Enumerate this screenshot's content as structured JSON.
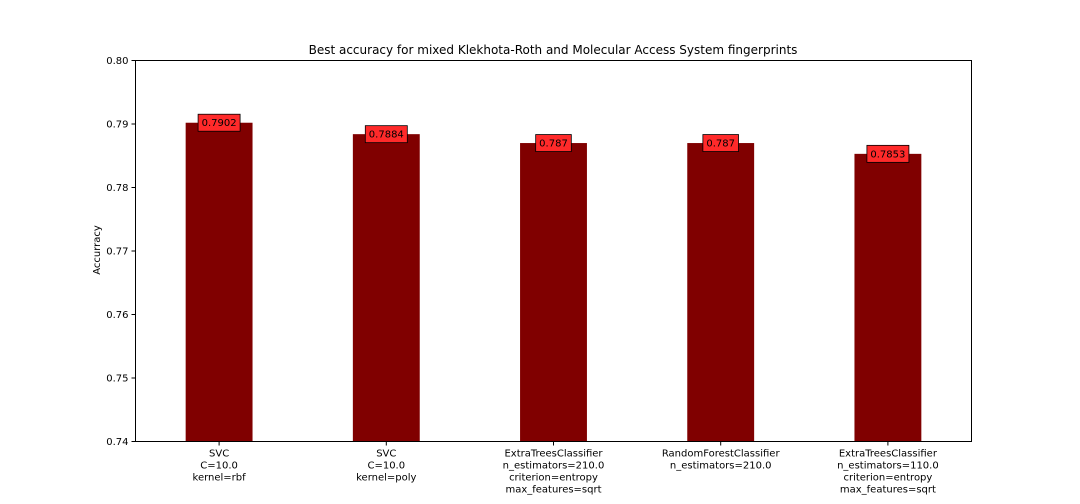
{
  "chart_data": {
    "type": "bar",
    "title": "Best accuracy for mixed Klekhota-Roth and Molecular Access System fingerprints",
    "xlabel": "",
    "ylabel": "Accurracy",
    "ylim": [
      0.74,
      0.8
    ],
    "yticks": [
      "0.74",
      "0.75",
      "0.76",
      "0.77",
      "0.78",
      "0.79",
      "0.80"
    ],
    "grid": false,
    "bar_color": "#800000",
    "label_box_color": "#ff2a2a",
    "categories": [
      [
        "SVC",
        "C=10.0",
        "kernel=rbf"
      ],
      [
        "SVC",
        "C=10.0",
        "kernel=poly"
      ],
      [
        "ExtraTreesClassifier",
        "n_estimators=210.0",
        "criterion=entropy",
        "max_features=sqrt"
      ],
      [
        "RandomForestClassifier",
        "n_estimators=210.0"
      ],
      [
        "ExtraTreesClassifier",
        "n_estimators=110.0",
        "criterion=entropy",
        "max_features=sqrt"
      ]
    ],
    "values": [
      0.7902,
      0.7884,
      0.787,
      0.787,
      0.7853
    ],
    "data_labels": [
      "0.7902",
      "0.7884",
      "0.787",
      "0.787",
      "0.7853"
    ]
  }
}
